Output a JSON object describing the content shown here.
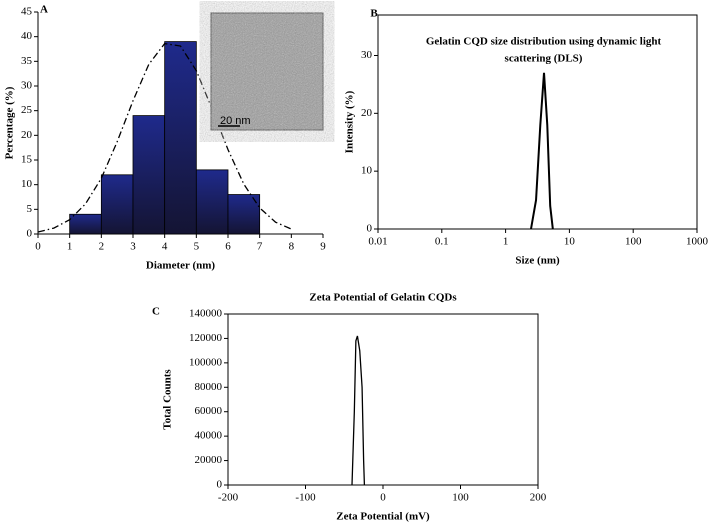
{
  "chart_data": [
    {
      "type": "histogram",
      "panel": "A",
      "xlabel": "Diameter (nm)",
      "ylabel": "Percentage (%)",
      "bins": [
        1,
        2,
        3,
        4,
        5,
        6,
        7
      ],
      "values": [
        4,
        12,
        24,
        39,
        13,
        8
      ],
      "color": "#1f2a8c",
      "curve": {
        "style": "dash-dot",
        "color": "#000000",
        "x": [
          0,
          0.5,
          1,
          1.5,
          2,
          2.5,
          3,
          3.5,
          4,
          4.5,
          5,
          5.5,
          6,
          6.5,
          7,
          7.5,
          8
        ],
        "values": [
          0.4,
          1.2,
          2.9,
          6.1,
          11.3,
          18.7,
          27,
          34.4,
          38.6,
          38.1,
          33.1,
          25.3,
          17.1,
          10.1,
          5.3,
          2.4,
          1
        ]
      },
      "inset_label": "20 nm",
      "xlim": [
        0,
        9
      ],
      "xticks": [
        0,
        1,
        2,
        3,
        4,
        5,
        6,
        7,
        8,
        9
      ],
      "ylim": [
        0,
        45
      ],
      "yticks": [
        0,
        5,
        10,
        15,
        20,
        25,
        30,
        35,
        40,
        45
      ]
    },
    {
      "type": "line",
      "panel": "B",
      "xlabel": "Size (nm)",
      "ylabel": "Intensity (%)",
      "annotation": [
        "Gelatin CQD size distribution using dynamic light",
        "scattering (DLS)"
      ],
      "xscale": "log",
      "color": "#000000",
      "x": [
        2.5,
        3,
        3.5,
        4,
        4.5,
        5,
        5.5
      ],
      "values": [
        0,
        5,
        18,
        27,
        18,
        4,
        0
      ],
      "xlim": [
        0.01,
        1000
      ],
      "xticks": [
        0.01,
        0.1,
        1,
        10,
        100,
        1000
      ],
      "ylim": [
        0,
        37
      ],
      "yticks": [
        0,
        10,
        20,
        30
      ]
    },
    {
      "type": "line",
      "panel": "C",
      "title": "Zeta Potential of Gelatin CQDs",
      "xlabel": "Zeta Potential (mV)",
      "ylabel": "Total Counts",
      "color": "#000000",
      "x": [
        -40,
        -37,
        -35,
        -33,
        -30,
        -27,
        -25,
        -24
      ],
      "values": [
        0,
        60000,
        118000,
        122000,
        110000,
        80000,
        20000,
        0
      ],
      "xlim": [
        -200,
        200
      ],
      "xticks": [
        -200,
        -100,
        0,
        100,
        200
      ],
      "ylim": [
        0,
        140000
      ],
      "yticks": [
        0,
        20000,
        40000,
        60000,
        80000,
        100000,
        120000,
        140000
      ]
    }
  ]
}
